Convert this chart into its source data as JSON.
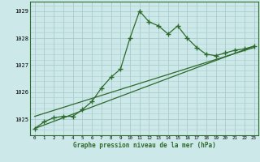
{
  "title": "Graphe pression niveau de la mer (hPa)",
  "bg_color": "#cce8e8",
  "grid_color": "#aacccc",
  "line_color": "#2d6a2d",
  "xlim": [
    -0.5,
    23.5
  ],
  "ylim": [
    1024.4,
    1029.35
  ],
  "yticks": [
    1025,
    1026,
    1027,
    1028,
    1029
  ],
  "xticks": [
    0,
    1,
    2,
    3,
    4,
    5,
    6,
    7,
    8,
    9,
    10,
    11,
    12,
    13,
    14,
    15,
    16,
    17,
    18,
    19,
    20,
    21,
    22,
    23
  ],
  "series1_x": [
    0,
    1,
    2,
    3,
    4,
    5,
    6,
    7,
    8,
    9,
    10,
    11,
    12,
    13,
    14,
    15,
    16,
    17,
    18,
    19,
    20,
    21,
    22,
    23
  ],
  "series1_y": [
    1024.65,
    1024.9,
    1025.05,
    1025.1,
    1025.1,
    1025.35,
    1025.65,
    1026.15,
    1026.55,
    1026.85,
    1028.0,
    1029.0,
    1028.6,
    1028.45,
    1028.15,
    1028.45,
    1028.0,
    1027.65,
    1027.4,
    1027.35,
    1027.45,
    1027.55,
    1027.6,
    1027.7
  ],
  "series2_x": [
    0,
    23
  ],
  "series2_y": [
    1024.65,
    1027.7
  ],
  "series3_x": [
    0,
    23
  ],
  "series3_y": [
    1025.1,
    1027.65
  ]
}
